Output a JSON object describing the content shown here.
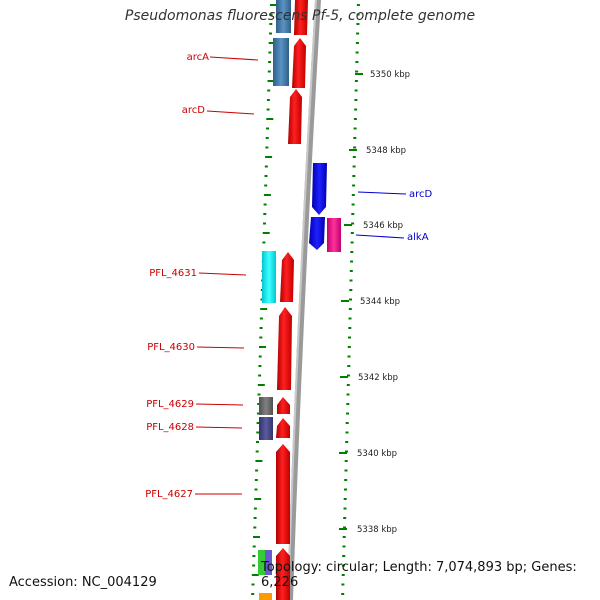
{
  "title": "Pseudomonas fluorescens Pf-5, complete genome",
  "footer": {
    "accession": "Accession: NC_004129",
    "topology": "Topology: circular; Length: 7,074,893 bp; Genes: 6,226"
  },
  "kbp_ticks": [
    "5350 kbp",
    "5348 kbp",
    "5346 kbp",
    "5344 kbp",
    "5342 kbp",
    "5340 kbp",
    "5338 kbp"
  ],
  "left_labels": [
    "arcA",
    "arcD",
    "PFL_4631",
    "PFL_4630",
    "PFL_4629",
    "PFL_4628",
    "PFL_4627"
  ],
  "right_labels": [
    "arcD",
    "alkA"
  ],
  "colors": {
    "gene_red": "#ff0000",
    "gene_blue": "#0000ff",
    "label_red": "#cc0000",
    "label_blue": "#0000cc",
    "tick_green": "#008000",
    "steel_blue": "#4682b4",
    "cyan": "#00ffff",
    "magenta": "#ff1493",
    "backbone": "#808080"
  }
}
